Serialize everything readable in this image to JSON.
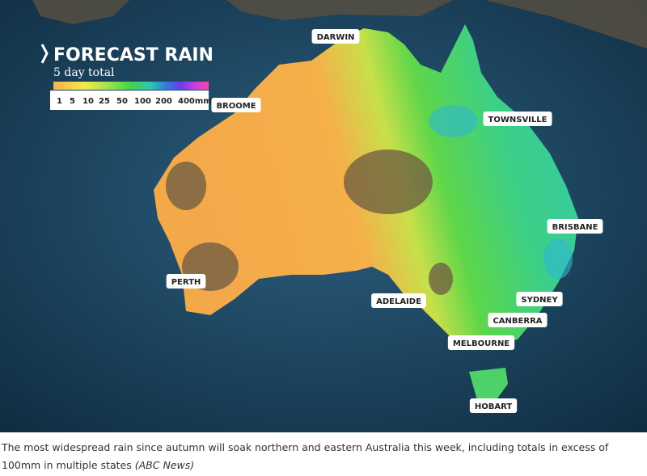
{
  "header": {
    "title": "FORECAST RAIN",
    "subtitle": "5 day total"
  },
  "legend": {
    "labels": [
      "1",
      "5",
      "10",
      "25",
      "50",
      "100",
      "200",
      "400mm"
    ]
  },
  "cities": [
    "DARWIN",
    "BROOME",
    "TOWNSVILLE",
    "BRISBANE",
    "PERTH",
    "ADELAIDE",
    "SYDNEY",
    "CANBERRA",
    "MELBOURNE",
    "HOBART"
  ],
  "caption": {
    "text": "The most widespread rain since autumn will soak northern and eastern Australia this week, including totals in excess of 100mm in multiple states",
    "source": "(ABC News)"
  }
}
